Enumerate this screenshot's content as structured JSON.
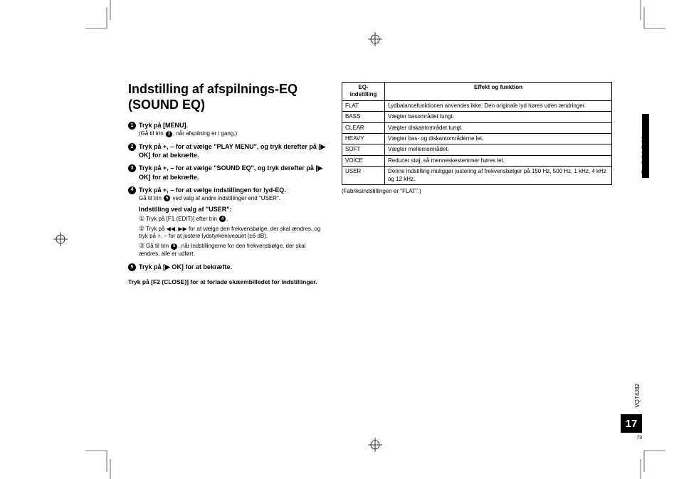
{
  "title": "Indstilling af afspilnings-EQ (SOUND EQ)",
  "steps": {
    "s1": {
      "num": "1",
      "title": "Tryk på [MENU].",
      "sub": "(Gå til trin |3|, når afspilning er i gang.)"
    },
    "s2": {
      "num": "2",
      "title": "Tryk på +, – for at vælge \"PLAY MENU\", og tryk derefter på [▶ OK] for at bekræfte."
    },
    "s3": {
      "num": "3",
      "title": "Tryk på +, – for at vælge \"SOUND EQ\", og tryk derefter på [▶ OK] for at bekræfte."
    },
    "s4": {
      "num": "4",
      "title": "Tryk på +, – for at vælge indstillingen for lyd-EQ.",
      "sub1": "Gå til trin |5| ved valg af andre indstillinger end \"USER\".",
      "subbold": "Indstilling ved valg af \"USER\":",
      "item1": "Tryk på [F1 (EDIT)] efter trin |4|.",
      "item2": "Tryk på ◀◀, ▶▶ for at vælge den frekvensbølge, der skal ændres, og tryk på +, – for at justere lydstyrkeniveauet (±6 dB).",
      "item3": "Gå til trin |5|, når indstillingerne for den frekvensbølge, der skal ændres, alle er udført."
    },
    "s5": {
      "num": "5",
      "title": "Tryk på [▶ OK] for at bekræfte."
    }
  },
  "closing": "Tryk på [F2 (CLOSE)] for at forlade skærmbilledet for indstillinger.",
  "table": {
    "head1": "EQ-indstilling",
    "head2": "Effekt og funktion",
    "rows": [
      [
        "FLAT",
        "Lydbalancefunktionen anvendes ikke. Den originale lyd høres uden ændringer."
      ],
      [
        "BASS",
        "Vægter basområdet tungt."
      ],
      [
        "CLEAR",
        "Vægter diskantområdet tungt."
      ],
      [
        "HEAVY",
        "Vægter bas- og diskantområderne let."
      ],
      [
        "SOFT",
        "Vægter mellemområdet."
      ],
      [
        "VOICE",
        "Reducer støj, så menneskestemmer høres let."
      ],
      [
        "USER",
        "Denne indstilling muliggør justering af frekvensbølger på 150 Hz, 500 Hz, 1 kHz, 4 kHz og 12 kHz."
      ]
    ],
    "note": "(Fabriksindstillingen er \"FLAT\".)"
  },
  "lang": "DANSK",
  "doccode": "VQT4J82",
  "page": "17",
  "smallpage": "73"
}
